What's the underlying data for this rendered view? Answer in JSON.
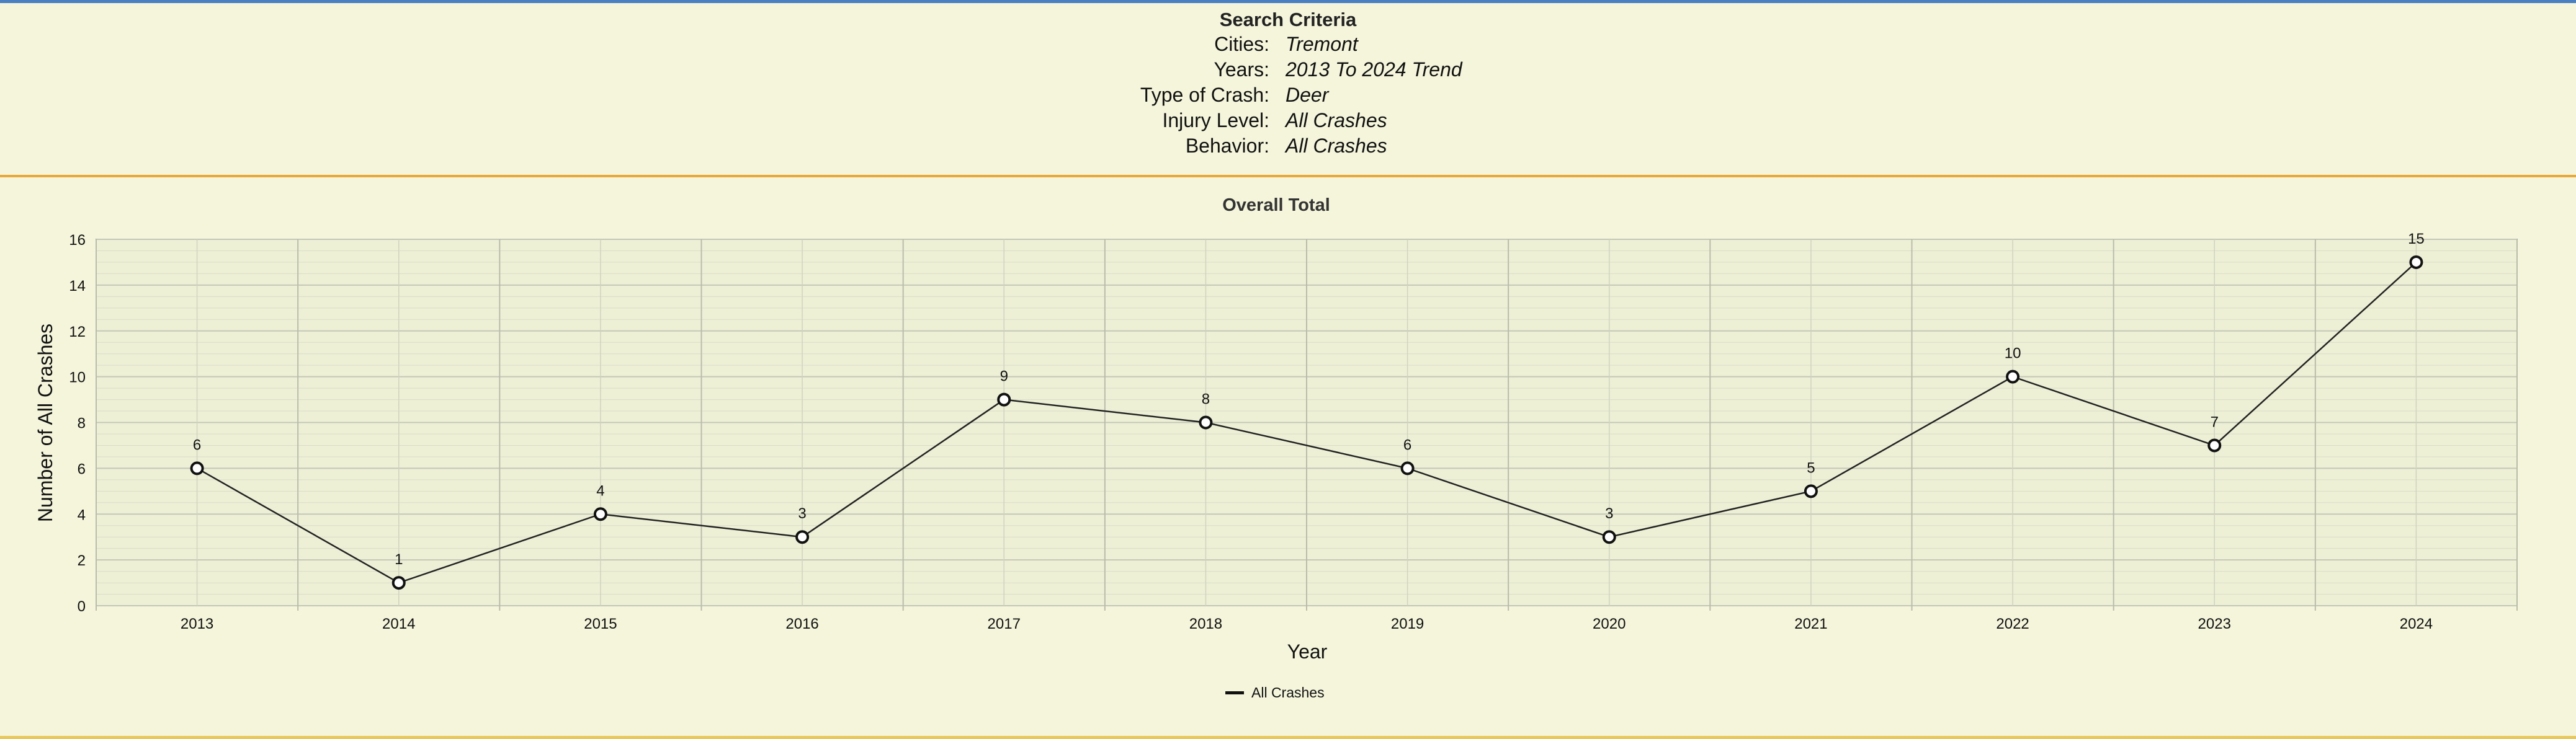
{
  "criteria": {
    "title": "Search Criteria",
    "rows": [
      {
        "label": "Cities:",
        "value": "Tremont"
      },
      {
        "label": "Years:",
        "value": "2013 To 2024 Trend"
      },
      {
        "label": "Type of Crash:",
        "value": "Deer"
      },
      {
        "label": "Injury Level:",
        "value": "All Crashes"
      },
      {
        "label": "Behavior:",
        "value": "All Crashes"
      }
    ]
  },
  "colors": {
    "background": "#f5f5dc",
    "top_rule": "#4a7fc1",
    "divider": "#e8a93a",
    "line": "#222222"
  },
  "chart_data": {
    "type": "line",
    "title": "Overall Total",
    "xlabel": "Year",
    "ylabel": "Number of All Crashes",
    "categories": [
      "2013",
      "2014",
      "2015",
      "2016",
      "2017",
      "2018",
      "2019",
      "2020",
      "2021",
      "2022",
      "2023",
      "2024"
    ],
    "series": [
      {
        "name": "All Crashes",
        "values": [
          6,
          1,
          4,
          3,
          9,
          8,
          6,
          3,
          5,
          10,
          7,
          15
        ]
      }
    ],
    "ylim": [
      0,
      16
    ],
    "yticks": [
      0,
      2,
      4,
      6,
      8,
      10,
      12,
      14,
      16
    ],
    "grid": true,
    "data_labels": true,
    "legend": "bottom-center"
  }
}
